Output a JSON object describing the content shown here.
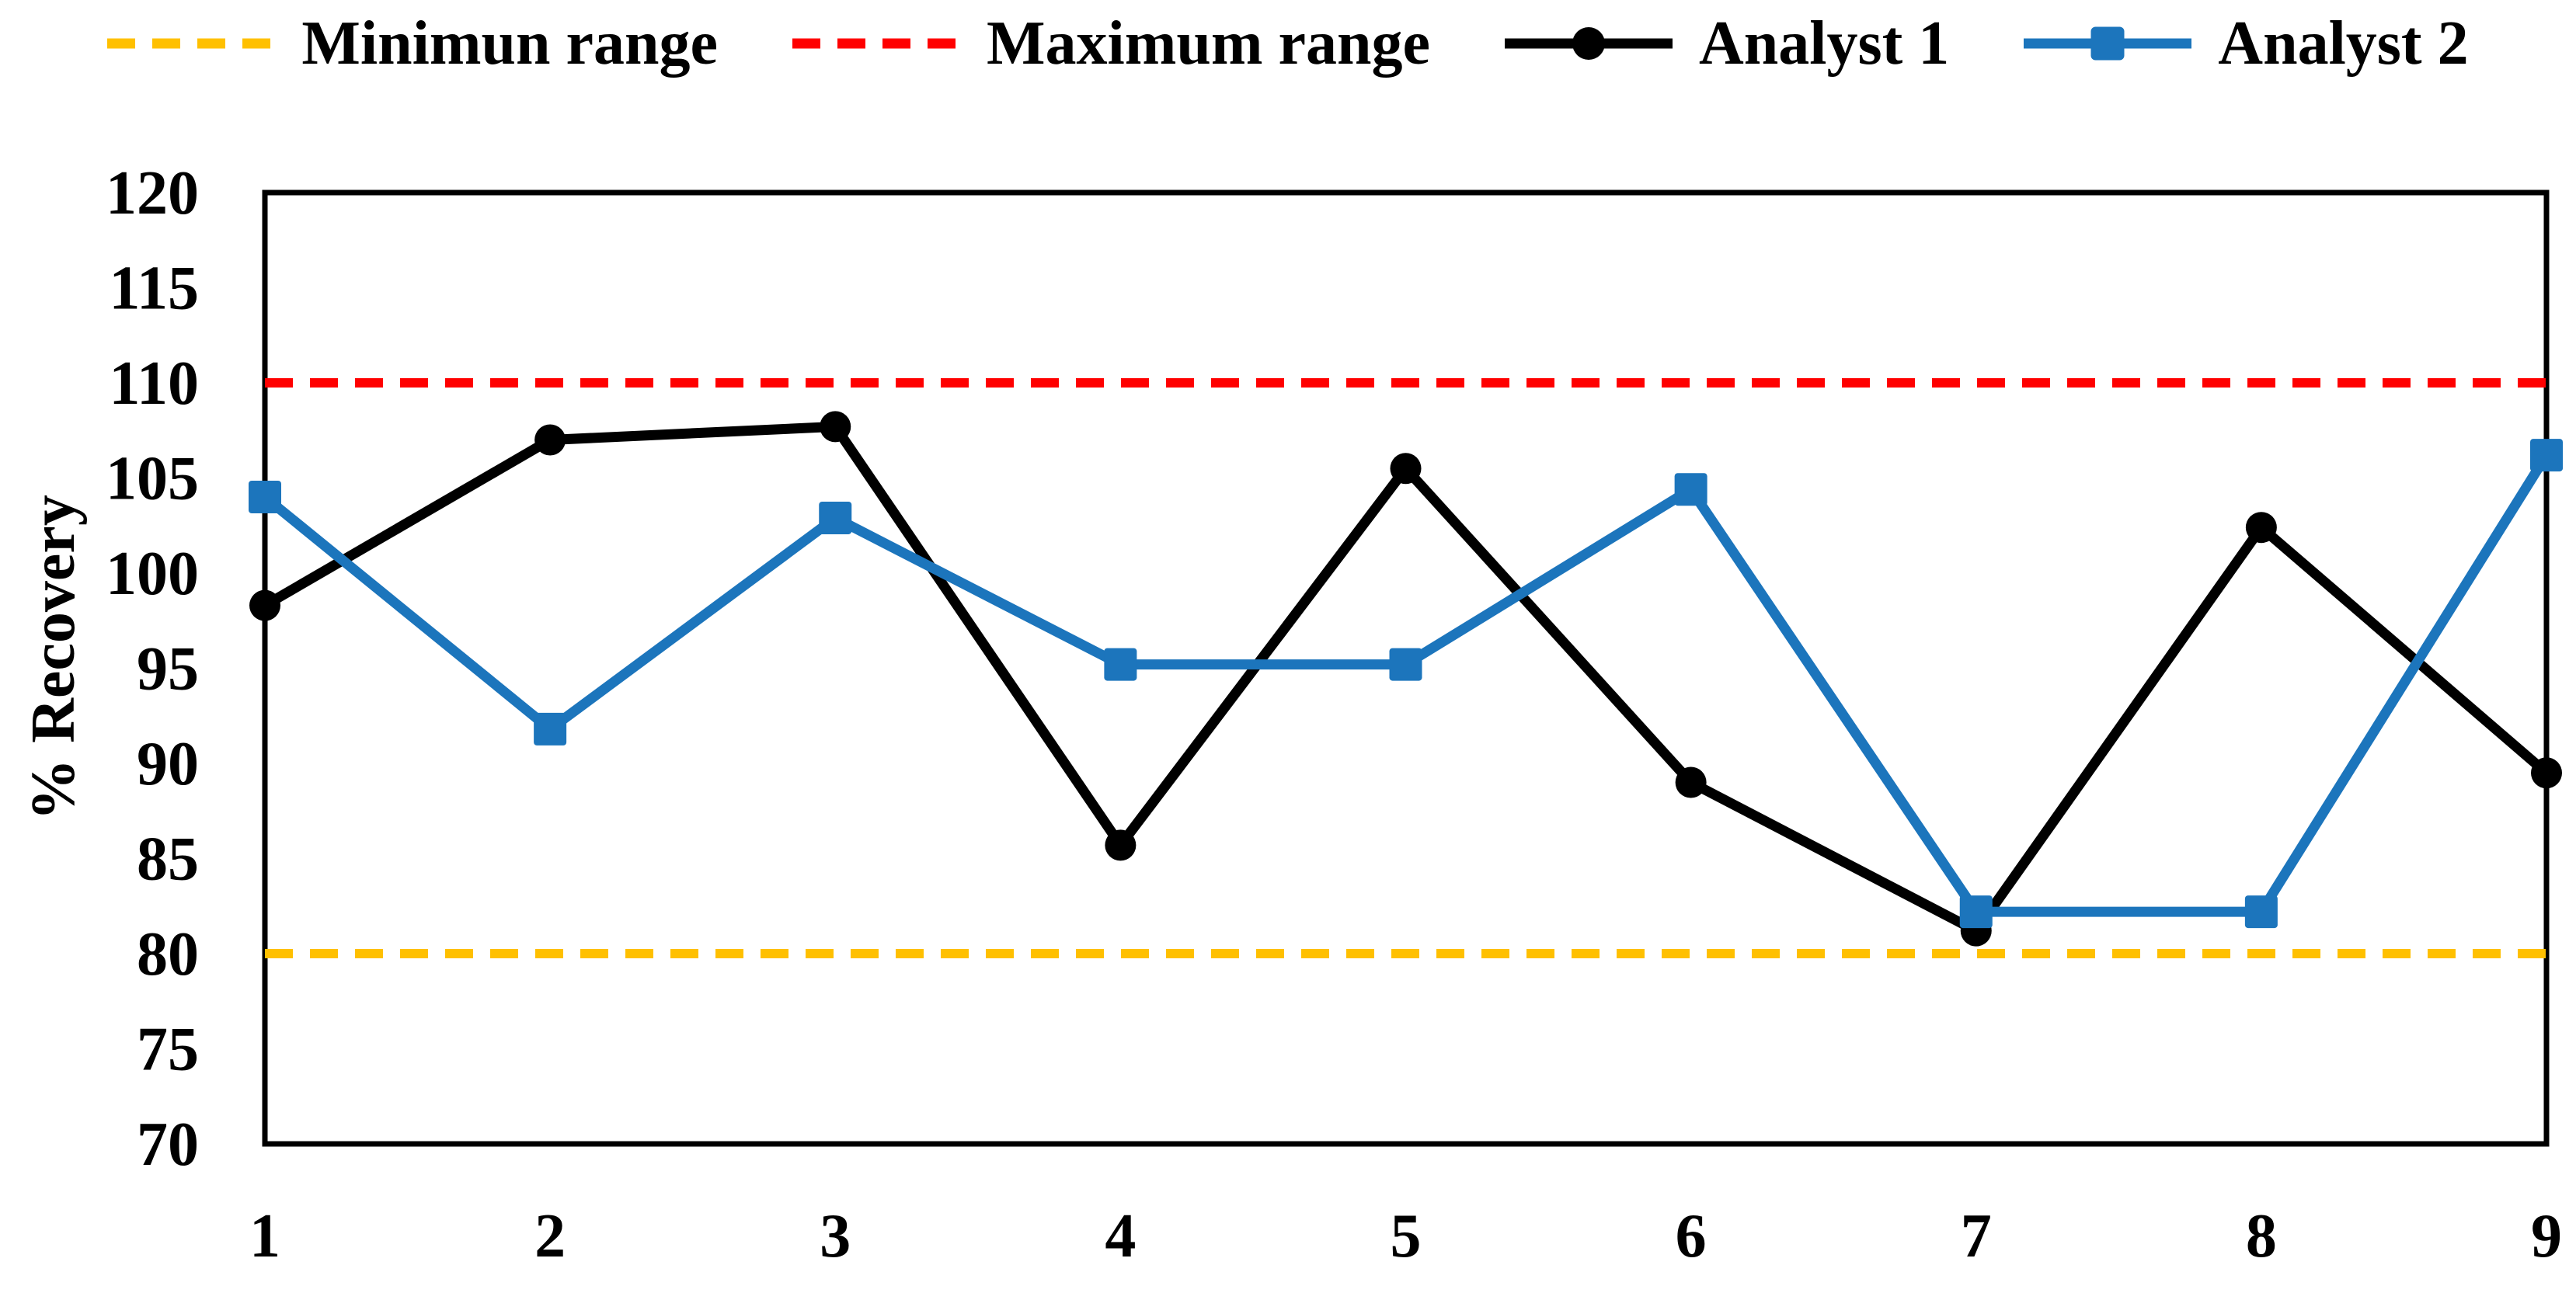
{
  "legend": {
    "items": [
      {
        "id": "min-range",
        "label": "Minimun range",
        "color": "#FFC000",
        "swatch": "dash"
      },
      {
        "id": "max-range",
        "label": "Maximum range",
        "color": "#FF0000",
        "swatch": "dash"
      },
      {
        "id": "analyst-1",
        "label": "Analyst 1",
        "color": "#000000",
        "swatch": "line-circle"
      },
      {
        "id": "analyst-2",
        "label": "Analyst 2",
        "color": "#1C75BC",
        "swatch": "line-square"
      }
    ]
  },
  "chart_data": {
    "type": "line",
    "categories": [
      1,
      2,
      3,
      4,
      5,
      6,
      7,
      8,
      9
    ],
    "series": [
      {
        "name": "Analyst 1",
        "color": "#000000",
        "marker": "circle",
        "values": [
          98.3,
          107.0,
          107.7,
          85.7,
          105.5,
          89.0,
          81.2,
          102.4,
          89.5
        ]
      },
      {
        "name": "Analyst 2",
        "color": "#1C75BC",
        "marker": "square",
        "values": [
          104.0,
          91.8,
          102.9,
          95.2,
          95.2,
          104.4,
          82.2,
          82.2,
          106.2
        ]
      }
    ],
    "reference_lines": [
      {
        "name": "Minimun range",
        "value": 80,
        "color": "#FFC000",
        "style": "dashed"
      },
      {
        "name": "Maximum range",
        "value": 110,
        "color": "#FF0000",
        "style": "dashed"
      }
    ],
    "title": "",
    "xlabel": "",
    "ylabel": "% Recovery",
    "ylim": [
      70,
      120
    ],
    "ytick_step": 5,
    "yticks": [
      70,
      75,
      80,
      85,
      90,
      95,
      100,
      105,
      110,
      115,
      120
    ],
    "grid": false,
    "legend_position": "top",
    "axis_color": "#000000",
    "background_color": "#FFFFFF"
  }
}
